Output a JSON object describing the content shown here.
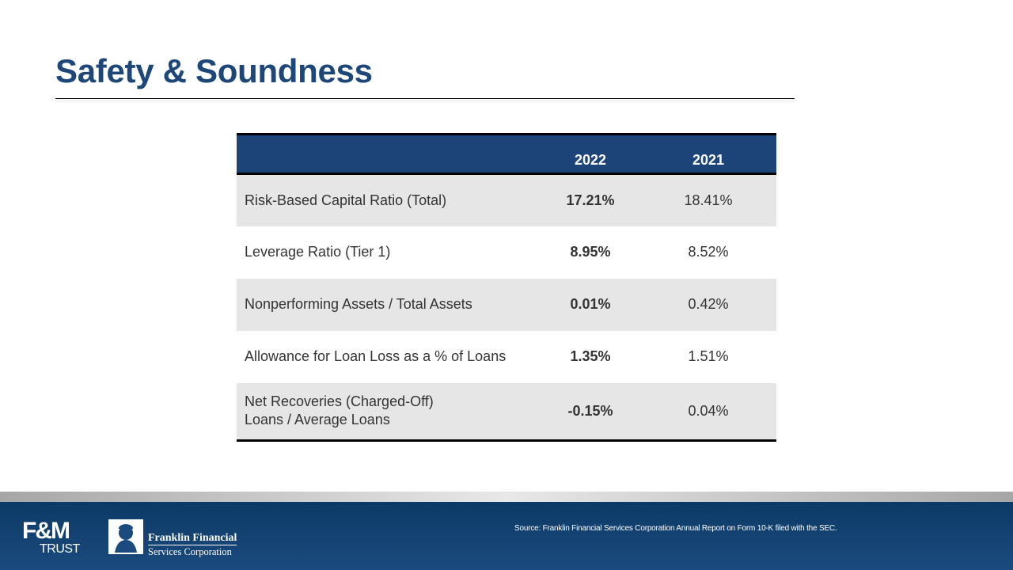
{
  "slide": {
    "title": "Safety & Soundness"
  },
  "table": {
    "columns": [
      "",
      "2022",
      "2021"
    ],
    "rows": [
      {
        "label_lines": [
          "Risk-Based Capital Ratio (Total)"
        ],
        "v2022": "17.21%",
        "v2021": "18.41%"
      },
      {
        "label_lines": [
          "Leverage Ratio (Tier 1)"
        ],
        "v2022": "8.95%",
        "v2021": "8.52%"
      },
      {
        "label_lines": [
          "Nonperforming Assets / Total Assets"
        ],
        "v2022": "0.01%",
        "v2021": "0.42%"
      },
      {
        "label_lines": [
          "Allowance for Loan Loss as a % of Loans"
        ],
        "v2022": "1.35%",
        "v2021": "1.51%"
      },
      {
        "label_lines": [
          "Net Recoveries (Charged-Off)",
          "Loans / Average Loans"
        ],
        "v2022": "-0.15%",
        "v2021": "0.04%"
      }
    ]
  },
  "footer": {
    "fm_logo_top": "F&M",
    "fm_logo_bottom": "TRUST",
    "ff_name_line1": "Franklin Financial",
    "ff_name_line2": "Services Corporation",
    "source_text": "Source: Franklin Financial Services Corporation Annual Report on Form 10-K filed with the SEC."
  },
  "colors": {
    "title": "#1d4778",
    "header_bg": "#1d4478",
    "row_shade": "#e6e6e6",
    "footer_bg": "#0c3a66"
  }
}
